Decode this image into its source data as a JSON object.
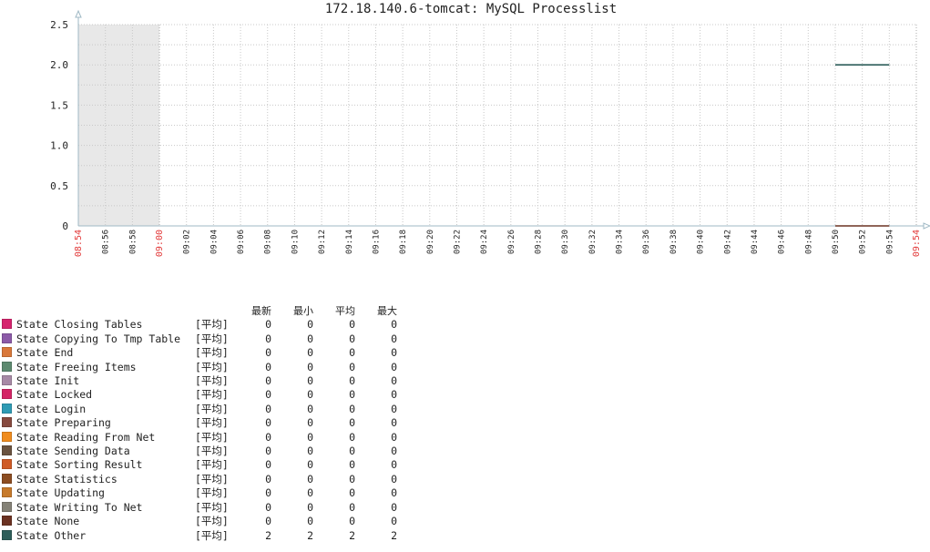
{
  "chart_data": {
    "type": "line",
    "title": "172.18.140.6-tomcat: MySQL Processlist",
    "ylim": [
      0,
      2.5
    ],
    "y_ticks": [
      "2.5",
      "2.0",
      "1.5",
      "1.0",
      "0.5",
      "0"
    ],
    "x_ticks": [
      {
        "label": "08:54",
        "highlight": true
      },
      {
        "label": "08:56"
      },
      {
        "label": "08:58"
      },
      {
        "label": "09:00",
        "highlight": true
      },
      {
        "label": "09:02"
      },
      {
        "label": "09:04"
      },
      {
        "label": "09:06"
      },
      {
        "label": "09:08"
      },
      {
        "label": "09:10"
      },
      {
        "label": "09:12"
      },
      {
        "label": "09:14"
      },
      {
        "label": "09:16"
      },
      {
        "label": "09:18"
      },
      {
        "label": "09:20"
      },
      {
        "label": "09:22"
      },
      {
        "label": "09:24"
      },
      {
        "label": "09:26"
      },
      {
        "label": "09:28"
      },
      {
        "label": "09:30"
      },
      {
        "label": "09:32"
      },
      {
        "label": "09:34"
      },
      {
        "label": "09:36"
      },
      {
        "label": "09:38"
      },
      {
        "label": "09:40"
      },
      {
        "label": "09:42"
      },
      {
        "label": "09:44"
      },
      {
        "label": "09:46"
      },
      {
        "label": "09:48"
      },
      {
        "label": "09:50"
      },
      {
        "label": "09:52"
      },
      {
        "label": "09:54"
      },
      {
        "label": "09:54",
        "highlight": true
      }
    ],
    "shaded_range": [
      "08:54",
      "09:00"
    ],
    "grid": true,
    "series": [
      {
        "name": "State Other",
        "color": "#2e5e5a",
        "x": [
          "09:50",
          "09:54"
        ],
        "y": [
          2,
          2
        ]
      },
      {
        "name": "State None",
        "color": "#6b3222",
        "x": [
          "09:50",
          "09:54"
        ],
        "y": [
          0,
          0
        ]
      }
    ]
  },
  "legend": {
    "headers": {
      "last": "最新",
      "min": "最小",
      "avg": "平均",
      "max": "最大"
    },
    "items": [
      {
        "color": "#d6246e",
        "name": "State Closing Tables",
        "func": "[平均]",
        "last": "0",
        "min": "0",
        "avg": "0",
        "max": "0"
      },
      {
        "color": "#8c5aa8",
        "name": "State Copying To Tmp Table",
        "func": "[平均]",
        "last": "0",
        "min": "0",
        "avg": "0",
        "max": "0"
      },
      {
        "color": "#d9783a",
        "name": "State End",
        "func": "[平均]",
        "last": "0",
        "min": "0",
        "avg": "0",
        "max": "0"
      },
      {
        "color": "#5d8a70",
        "name": "State Freeing Items",
        "func": "[平均]",
        "last": "0",
        "min": "0",
        "avg": "0",
        "max": "0"
      },
      {
        "color": "#a78aa6",
        "name": "State Init",
        "func": "[平均]",
        "last": "0",
        "min": "0",
        "avg": "0",
        "max": "0"
      },
      {
        "color": "#d42566",
        "name": "State Locked",
        "func": "[平均]",
        "last": "0",
        "min": "0",
        "avg": "0",
        "max": "0"
      },
      {
        "color": "#2f9bb4",
        "name": "State Login",
        "func": "[平均]",
        "last": "0",
        "min": "0",
        "avg": "0",
        "max": "0"
      },
      {
        "color": "#874a3f",
        "name": "State Preparing",
        "func": "[平均]",
        "last": "0",
        "min": "0",
        "avg": "0",
        "max": "0"
      },
      {
        "color": "#f08c1e",
        "name": "State Reading From Net",
        "func": "[平均]",
        "last": "0",
        "min": "0",
        "avg": "0",
        "max": "0"
      },
      {
        "color": "#6a5340",
        "name": "State Sending Data",
        "func": "[平均]",
        "last": "0",
        "min": "0",
        "avg": "0",
        "max": "0"
      },
      {
        "color": "#cf5b26",
        "name": "State Sorting Result",
        "func": "[平均]",
        "last": "0",
        "min": "0",
        "avg": "0",
        "max": "0"
      },
      {
        "color": "#8c4d22",
        "name": "State Statistics",
        "func": "[平均]",
        "last": "0",
        "min": "0",
        "avg": "0",
        "max": "0"
      },
      {
        "color": "#c77a2b",
        "name": "State Updating",
        "func": "[平均]",
        "last": "0",
        "min": "0",
        "avg": "0",
        "max": "0"
      },
      {
        "color": "#858277",
        "name": "State Writing To Net",
        "func": "[平均]",
        "last": "0",
        "min": "0",
        "avg": "0",
        "max": "0"
      },
      {
        "color": "#6b3222",
        "name": "State None",
        "func": "[平均]",
        "last": "0",
        "min": "0",
        "avg": "0",
        "max": "0"
      },
      {
        "color": "#2e5e5a",
        "name": "State Other",
        "func": "[平均]",
        "last": "2",
        "min": "2",
        "avg": "2",
        "max": "2"
      }
    ]
  }
}
